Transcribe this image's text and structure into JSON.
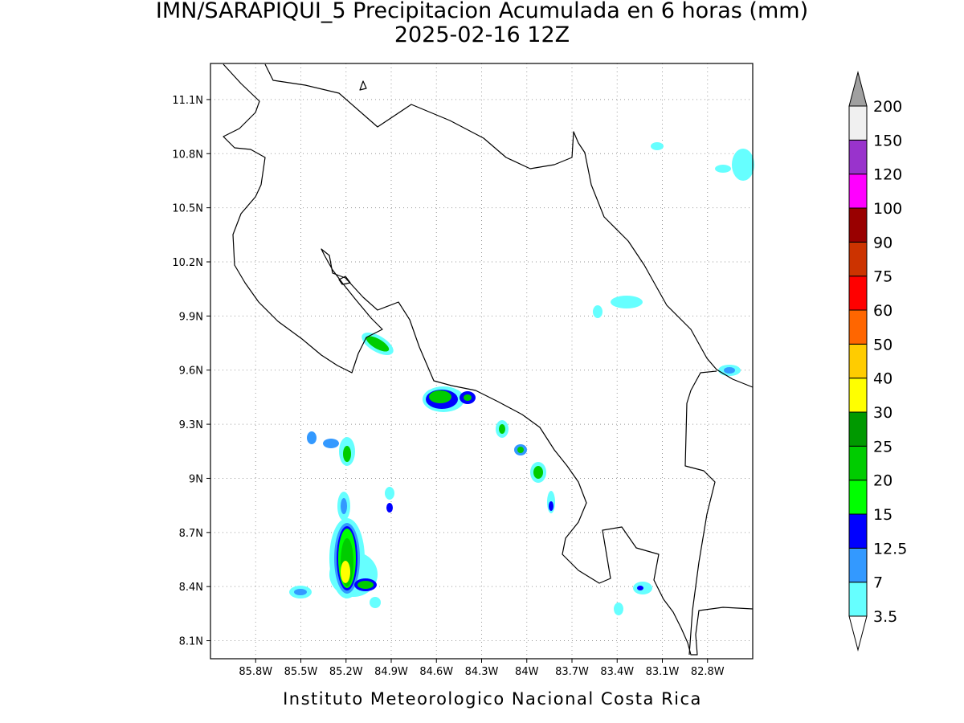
{
  "title": "IMN/SARAPIQUI_5 Precipitacion Acumulada en 6 horas (mm)",
  "subtitle": "2025-02-16 12Z",
  "footer": "Instituto Meteorologico Nacional Costa Rica",
  "map": {
    "lon_range": [
      -86.1,
      -82.5
    ],
    "lat_range": [
      8.0,
      11.3
    ],
    "lon_ticks": [
      {
        "value": -85.8,
        "label": "85.8W"
      },
      {
        "value": -85.5,
        "label": "85.5W"
      },
      {
        "value": -85.2,
        "label": "85.2W"
      },
      {
        "value": -84.9,
        "label": "84.9W"
      },
      {
        "value": -84.6,
        "label": "84.6W"
      },
      {
        "value": -84.3,
        "label": "84.3W"
      },
      {
        "value": -84.0,
        "label": "84W"
      },
      {
        "value": -83.7,
        "label": "83.7W"
      },
      {
        "value": -83.4,
        "label": "83.4W"
      },
      {
        "value": -83.1,
        "label": "83.1W"
      },
      {
        "value": -82.8,
        "label": "82.8W"
      }
    ],
    "lat_ticks": [
      {
        "value": 8.1,
        "label": "8.1N"
      },
      {
        "value": 8.4,
        "label": "8.4N"
      },
      {
        "value": 8.7,
        "label": "8.7N"
      },
      {
        "value": 9.0,
        "label": "9N"
      },
      {
        "value": 9.3,
        "label": "9.3N"
      },
      {
        "value": 9.6,
        "label": "9.6N"
      },
      {
        "value": 9.9,
        "label": "9.9N"
      },
      {
        "value": 10.2,
        "label": "10.2N"
      },
      {
        "value": 10.5,
        "label": "10.5N"
      },
      {
        "value": 10.8,
        "label": "10.8N"
      },
      {
        "value": 11.1,
        "label": "11.1N"
      }
    ]
  },
  "colorbar": {
    "levels": [
      3.5,
      7,
      12.5,
      15,
      20,
      25,
      30,
      40,
      50,
      60,
      75,
      90,
      100,
      120,
      150,
      200
    ],
    "colors": [
      "#66ffff",
      "#3399ff",
      "#0000ff",
      "#00ff00",
      "#00cc00",
      "#009900",
      "#ffff00",
      "#ffcc00",
      "#ff6600",
      "#ff0000",
      "#cc3300",
      "#990000",
      "#ff00ff",
      "#9933cc",
      "#f0f0f0"
    ],
    "under_color": "#ffffff",
    "over_color": "#a0a0a0"
  }
}
